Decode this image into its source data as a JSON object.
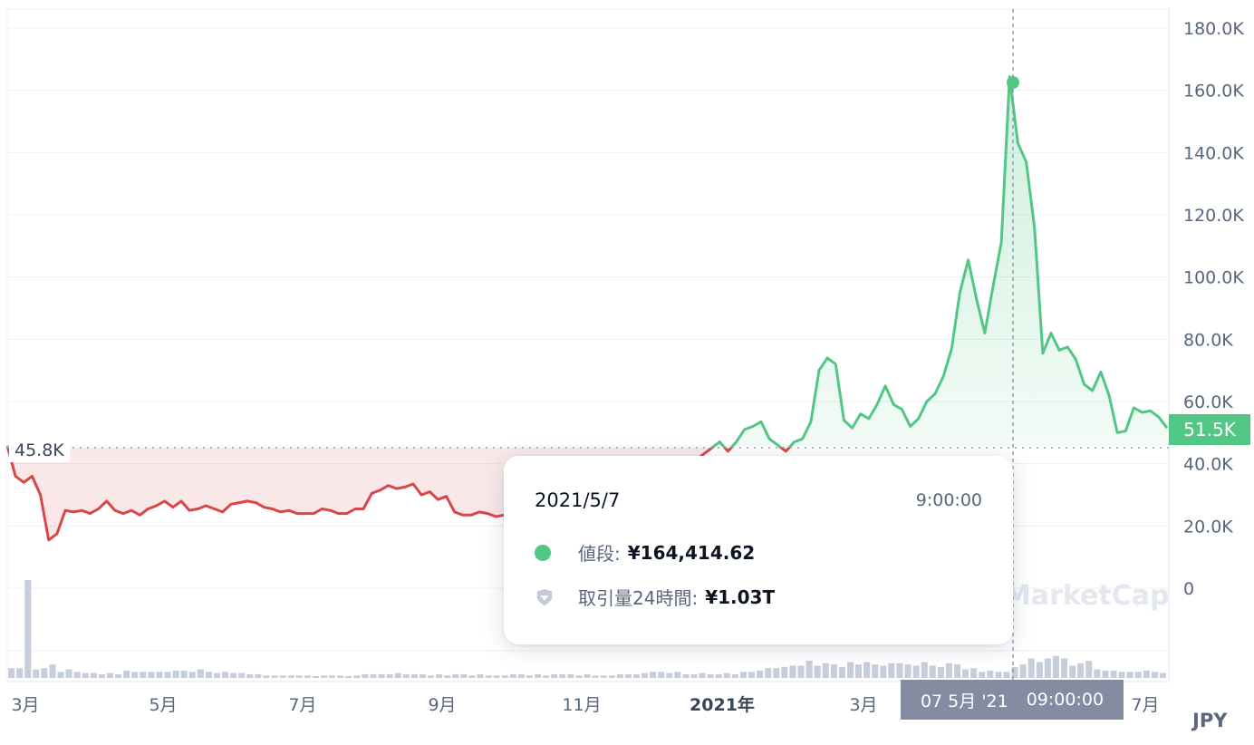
{
  "chart_data": {
    "type": "line",
    "currency": "JPY",
    "y_ticks": [
      "180.0K",
      "160.0K",
      "140.0K",
      "120.0K",
      "100.0K",
      "80.0K",
      "60.0K",
      "40.0K",
      "20.0K",
      "0"
    ],
    "y_tick_values": [
      180000,
      160000,
      140000,
      120000,
      100000,
      80000,
      60000,
      40000,
      20000,
      0
    ],
    "x_ticks": [
      {
        "label": "3月",
        "bold": false
      },
      {
        "label": "5月",
        "bold": false
      },
      {
        "label": "7月",
        "bold": false
      },
      {
        "label": "9月",
        "bold": false
      },
      {
        "label": "11月",
        "bold": false
      },
      {
        "label": "2021年",
        "bold": true
      },
      {
        "label": "3月",
        "bold": false
      },
      {
        "label": "7月",
        "bold": false
      }
    ],
    "reference_value": 45800,
    "reference_label": "45.8K",
    "current_price_label": "51.5K",
    "colors": {
      "up": "#52c785",
      "down": "#d9464a",
      "volume": "#c7cedb",
      "grid": "#eef1f6"
    },
    "price_series": [
      45800,
      36000,
      34000,
      36000,
      30000,
      15500,
      17500,
      25000,
      24500,
      25000,
      24000,
      25500,
      28000,
      25000,
      24000,
      25000,
      23500,
      25500,
      26500,
      28000,
      26000,
      28000,
      25000,
      25500,
      26500,
      25500,
      24500,
      27000,
      27500,
      28000,
      27500,
      26000,
      25500,
      24500,
      25000,
      24000,
      24000,
      24000,
      25500,
      25000,
      24000,
      24000,
      25500,
      25500,
      30500,
      31500,
      33000,
      32000,
      32500,
      33500,
      30000,
      31000,
      28500,
      29500,
      24500,
      23500,
      23500,
      24500,
      24000,
      23000,
      23500,
      24000,
      24000,
      24000,
      24500,
      24000,
      23500,
      24500,
      25000,
      24500,
      25000,
      25500,
      26000,
      26500,
      27000,
      28000,
      29000,
      30000,
      31500,
      33000,
      35000,
      37000,
      39000,
      41000,
      43000,
      45000,
      47000,
      44000,
      47000,
      51000,
      52000,
      53500,
      48000,
      46000,
      44000,
      47000,
      48000,
      53500,
      70000,
      74000,
      72000,
      54000,
      51500,
      56000,
      54500,
      59000,
      65000,
      59000,
      57500,
      52000,
      54500,
      60000,
      62500,
      68000,
      77000,
      95000,
      105500,
      93000,
      82000,
      97000,
      111000,
      164400,
      143000,
      137000,
      116000,
      75500,
      82000,
      76500,
      77500,
      73500,
      65500,
      63500,
      69500,
      62000,
      50000,
      50500,
      58000,
      56500,
      57000,
      55000,
      51500
    ],
    "volume_series": [
      8,
      8,
      80,
      7,
      8,
      11,
      5,
      7,
      5,
      4,
      4,
      3,
      4,
      3,
      6,
      5,
      5,
      5,
      5,
      5,
      6,
      6,
      5,
      7,
      5,
      4,
      5,
      4,
      4,
      3,
      3,
      2,
      2,
      2,
      2,
      2,
      2,
      1,
      2,
      2,
      2,
      1,
      2,
      3,
      3,
      3,
      3,
      4,
      3,
      3,
      3,
      2,
      3,
      2,
      3,
      3,
      2,
      3,
      2,
      2,
      2,
      3,
      3,
      2,
      3,
      2,
      3,
      3,
      3,
      2,
      3,
      2,
      2,
      2,
      3,
      3,
      3,
      4,
      5,
      5,
      4,
      5,
      3,
      3,
      4,
      3,
      3,
      4,
      3,
      5,
      5,
      6,
      8,
      8,
      9,
      10,
      10,
      14,
      10,
      12,
      11,
      9,
      13,
      11,
      13,
      11,
      10,
      12,
      12,
      11,
      10,
      13,
      10,
      9,
      12,
      11,
      7,
      8,
      5,
      6,
      5,
      5,
      9,
      11,
      16,
      13,
      16,
      18,
      16,
      10,
      12,
      14,
      7,
      6,
      6,
      5,
      5,
      5,
      6,
      5,
      4
    ],
    "tooltip": {
      "date": "2021/5/7",
      "time": "9:00:00",
      "price_label": "値段:",
      "price_value": "¥164,414.62",
      "volume_label": "取引量24時間:",
      "volume_value": "¥1.03T"
    },
    "crosshair_label_date": "07 5月 '21",
    "crosshair_label_time": "09:00:00",
    "watermark": "MarketCap"
  }
}
